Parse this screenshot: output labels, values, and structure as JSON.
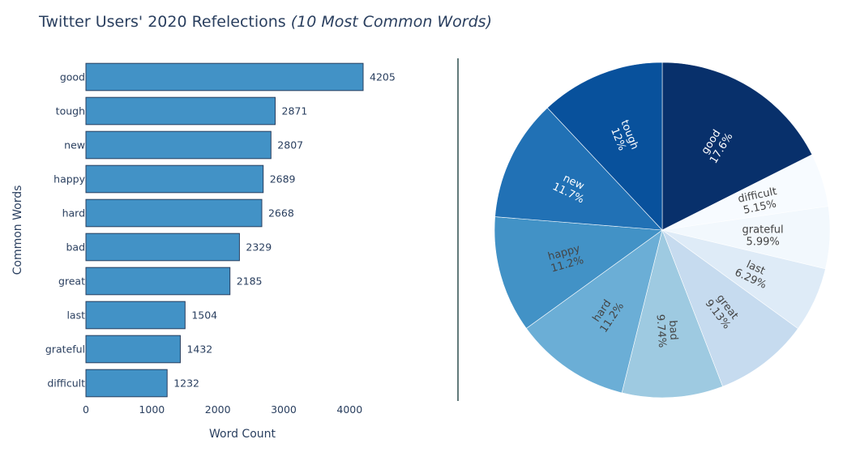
{
  "title": {
    "main": "Twitter Users' 2020 Refelections ",
    "italic": "(10 Most Common Words)"
  },
  "colors": {
    "bar_fill": "#4292c6",
    "bar_stroke": "#2a3f5f",
    "divider": "#2f4f4f"
  },
  "chart_data": [
    {
      "type": "bar",
      "orientation": "horizontal",
      "categories": [
        "good",
        "tough",
        "new",
        "happy",
        "hard",
        "bad",
        "great",
        "last",
        "grateful",
        "difficult"
      ],
      "values": [
        4205,
        2871,
        2807,
        2689,
        2668,
        2329,
        2185,
        1504,
        1432,
        1232
      ],
      "value_labels": [
        "4205",
        "2871",
        "2807",
        "2689",
        "2668",
        "2329",
        "2185",
        "1504",
        "1432",
        "1232"
      ],
      "xlabel": "Word Count",
      "ylabel": "Common Words",
      "xlim": [
        0,
        4205
      ],
      "xticks": [
        0,
        1000,
        2000,
        3000,
        4000
      ],
      "xtick_labels": [
        "0",
        "1000",
        "2000",
        "3000",
        "4000"
      ],
      "grid": false
    },
    {
      "type": "pie",
      "direction": "clockwise",
      "labels": [
        "good",
        "difficult",
        "grateful",
        "last",
        "great",
        "bad",
        "hard",
        "happy",
        "new",
        "tough"
      ],
      "values": [
        4205,
        1232,
        1432,
        1504,
        2185,
        2329,
        2668,
        2689,
        2807,
        2871
      ],
      "percent_labels": [
        "17.6%",
        "5.15%",
        "5.99%",
        "6.29%",
        "9.13%",
        "9.74%",
        "11.2%",
        "11.2%",
        "11.7%",
        "12%"
      ],
      "colors": [
        "#08306b",
        "#f7fbff",
        "#f2f8fd",
        "#deebf7",
        "#c6dbef",
        "#9ecae1",
        "#6baed6",
        "#4292c6",
        "#2171b5",
        "#08519c"
      ],
      "text_colors": [
        "#ffffff",
        "#444444",
        "#444444",
        "#444444",
        "#444444",
        "#444444",
        "#444444",
        "#444444",
        "#ffffff",
        "#ffffff"
      ]
    }
  ]
}
